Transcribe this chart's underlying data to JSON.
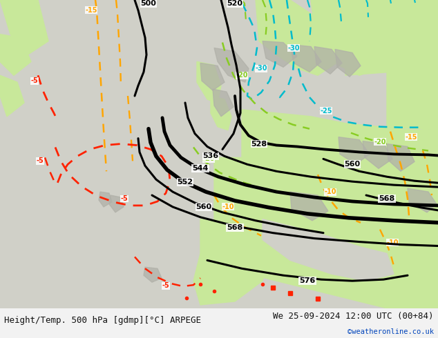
{
  "title_left": "Height/Temp. 500 hPa [gdmp][°C] ARPEGE",
  "title_right": "We 25-09-2024 12:00 UTC (00+84)",
  "watermark": "©weatheronline.co.uk",
  "ocean_color": "#d0d0c8",
  "land_color": "#c8e89a",
  "gray_terrain_color": "#b0b0a8",
  "height_contour_color": "#000000",
  "temp_warm_color": "#ffa500",
  "temp_cold_color": "#00bbcc",
  "temp_green_color": "#88cc22",
  "temp_hot_color": "#ff2200",
  "figsize": [
    6.34,
    4.9
  ],
  "dpi": 100,
  "bottom_bar_color": "#f2f2f2",
  "text_color": "#111111",
  "title_fontsize": 9,
  "watermark_color": "#0044bb"
}
